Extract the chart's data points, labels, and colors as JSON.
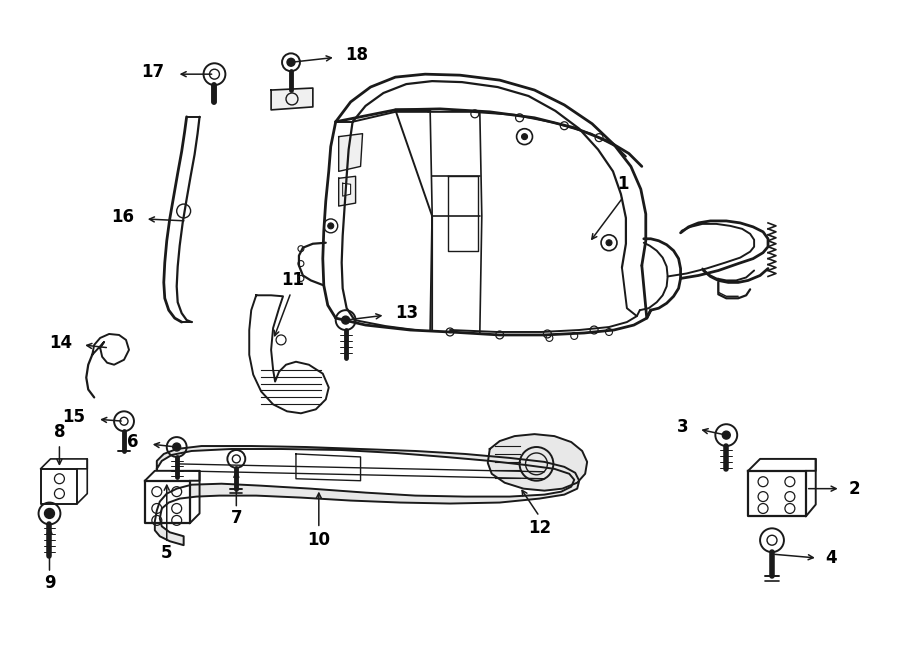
{
  "bg_color": "#ffffff",
  "line_color": "#1a1a1a",
  "lw": 1.4
}
